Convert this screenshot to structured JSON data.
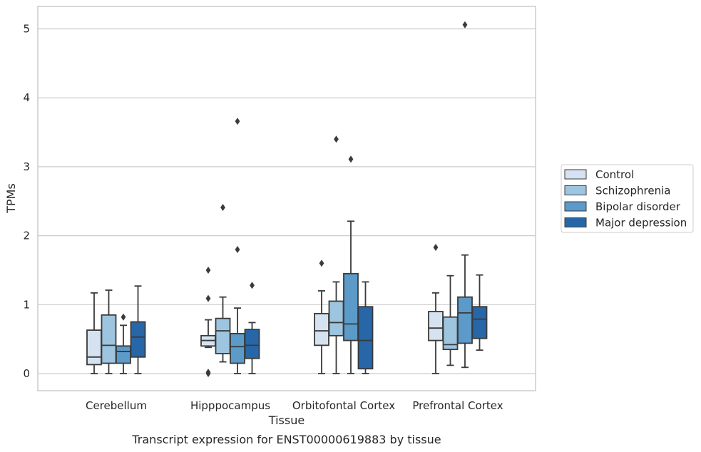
{
  "caption": "Transcript expression for ENST00000619883 by tissue",
  "chart_data": {
    "type": "boxplot",
    "xlabel": "Tissue",
    "ylabel": "TPMs",
    "ylim": [
      -0.25,
      5.32
    ],
    "yticks": [
      0,
      1,
      2,
      3,
      4,
      5
    ],
    "grid": true,
    "legend_position": "right",
    "categories": [
      "Cerebellum",
      "Hipppocampus",
      "Orbitofontal Cortex",
      "Prefrontal Cortex"
    ],
    "series": [
      {
        "name": "Control",
        "color": "#d5e3f1",
        "boxes": [
          {
            "min": 0.0,
            "q1": 0.13,
            "median": 0.24,
            "q3": 0.63,
            "max": 1.17,
            "outliers": []
          },
          {
            "min": 0.38,
            "q1": 0.4,
            "median": 0.48,
            "q3": 0.55,
            "max": 0.78,
            "outliers": [
              1.5,
              1.09,
              0.0,
              0.02
            ]
          },
          {
            "min": 0.0,
            "q1": 0.41,
            "median": 0.62,
            "q3": 0.87,
            "max": 1.2,
            "outliers": [
              1.6
            ]
          },
          {
            "min": 0.0,
            "q1": 0.48,
            "median": 0.66,
            "q3": 0.9,
            "max": 1.17,
            "outliers": [
              1.83
            ]
          }
        ]
      },
      {
        "name": "Schizophrenia",
        "color": "#9ec5df",
        "boxes": [
          {
            "min": 0.0,
            "q1": 0.15,
            "median": 0.41,
            "q3": 0.85,
            "max": 1.21,
            "outliers": []
          },
          {
            "min": 0.17,
            "q1": 0.29,
            "median": 0.62,
            "q3": 0.8,
            "max": 1.11,
            "outliers": [
              2.41
            ]
          },
          {
            "min": 0.0,
            "q1": 0.55,
            "median": 0.74,
            "q3": 1.05,
            "max": 1.33,
            "outliers": [
              3.4
            ]
          },
          {
            "min": 0.12,
            "q1": 0.35,
            "median": 0.42,
            "q3": 0.82,
            "max": 1.42,
            "outliers": []
          }
        ]
      },
      {
        "name": "Bipolar disorder",
        "color": "#5b9ac9",
        "boxes": [
          {
            "min": 0.0,
            "q1": 0.15,
            "median": 0.32,
            "q3": 0.4,
            "max": 0.7,
            "outliers": [
              0.82
            ]
          },
          {
            "min": 0.0,
            "q1": 0.15,
            "median": 0.39,
            "q3": 0.58,
            "max": 0.95,
            "outliers": [
              3.66,
              1.8
            ]
          },
          {
            "min": 0.0,
            "q1": 0.48,
            "median": 0.72,
            "q3": 1.45,
            "max": 2.21,
            "outliers": [
              3.11
            ]
          },
          {
            "min": 0.09,
            "q1": 0.44,
            "median": 0.88,
            "q3": 1.11,
            "max": 1.72,
            "outliers": [
              5.06
            ]
          }
        ]
      },
      {
        "name": "Major depression",
        "color": "#2767a8",
        "boxes": [
          {
            "min": 0.0,
            "q1": 0.24,
            "median": 0.53,
            "q3": 0.75,
            "max": 1.27,
            "outliers": []
          },
          {
            "min": 0.0,
            "q1": 0.22,
            "median": 0.41,
            "q3": 0.64,
            "max": 0.74,
            "outliers": [
              1.28
            ]
          },
          {
            "min": 0.0,
            "q1": 0.07,
            "median": 0.48,
            "q3": 0.97,
            "max": 1.33,
            "outliers": []
          },
          {
            "min": 0.34,
            "q1": 0.51,
            "median": 0.79,
            "q3": 0.97,
            "max": 1.43,
            "outliers": []
          }
        ]
      }
    ]
  }
}
